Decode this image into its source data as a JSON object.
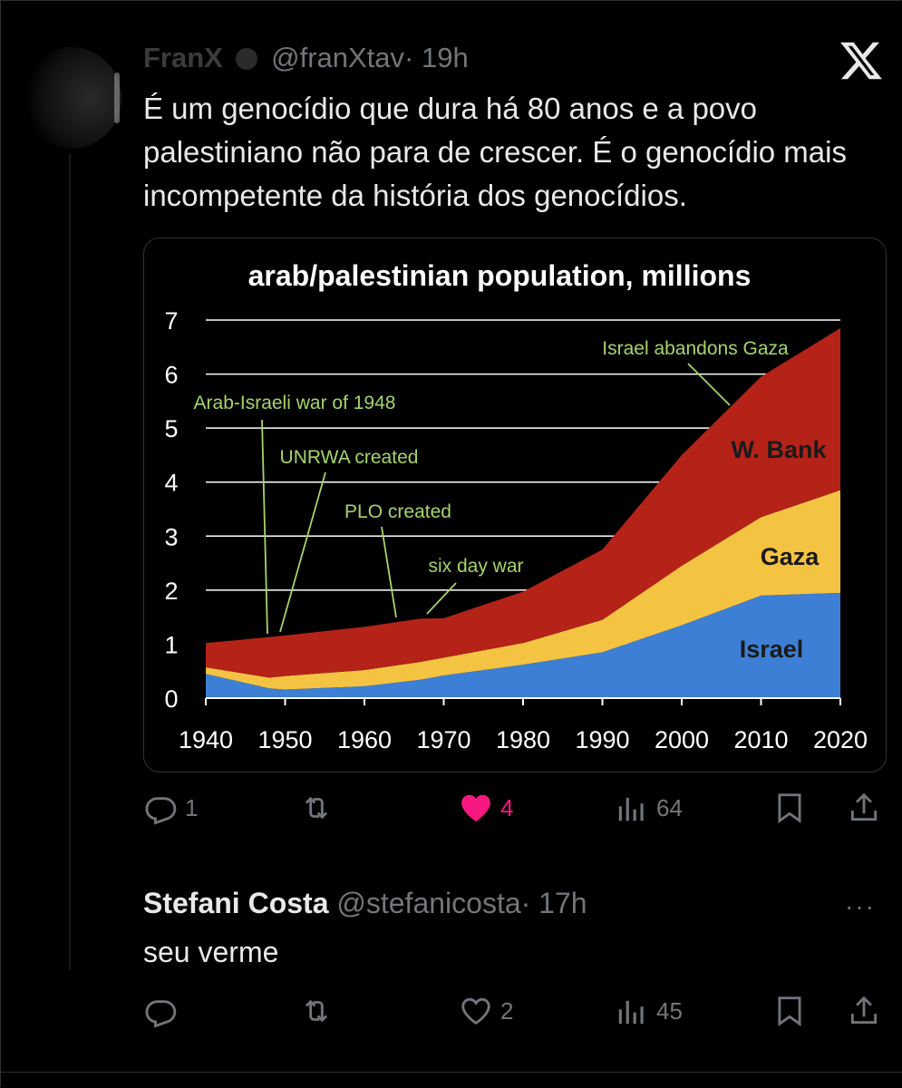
{
  "tweet": {
    "display_name": "FranX",
    "handle": "@franXtav",
    "time": "· 19h",
    "text": "É um genocídio que dura há 80 anos e a povo palestiniano não para de crescer. É o genocídio mais incompetente da história dos genocídios.",
    "actions": {
      "replies": "1",
      "reposts": "",
      "likes": "4",
      "views": "64"
    }
  },
  "reply": {
    "display_name": "Stefani Costa",
    "handle": "@stefanicosta",
    "time": "· 17h",
    "more": "···",
    "text": "seu verme",
    "actions": {
      "replies": "",
      "reposts": "",
      "likes": "2",
      "views": "45"
    }
  },
  "colors": {
    "like": "#f91880",
    "israel": "#3d7fd4",
    "gaza": "#f5c342",
    "wbank": "#b52318",
    "annotation": "#a5d46a"
  },
  "icons": [
    "x-logo-icon",
    "reply-icon",
    "repost-icon",
    "heart-icon",
    "views-icon",
    "bookmark-icon",
    "share-icon",
    "verified-icon",
    "more-icon"
  ],
  "chart_data": {
    "type": "area",
    "stacked": true,
    "title": "arab/palestinian population, millions",
    "x": [
      1940,
      1948,
      1950,
      1960,
      1967,
      1970,
      1980,
      1990,
      2000,
      2010,
      2020
    ],
    "series": [
      {
        "name": "Israel",
        "values": [
          0.45,
          0.18,
          0.16,
          0.22,
          0.34,
          0.42,
          0.62,
          0.85,
          1.35,
          1.9,
          1.95
        ]
      },
      {
        "name": "Gaza",
        "values": [
          0.12,
          0.2,
          0.25,
          0.3,
          0.33,
          0.33,
          0.4,
          0.6,
          1.1,
          1.45,
          1.9
        ]
      },
      {
        "name": "W. Bank",
        "values": [
          0.45,
          0.75,
          0.75,
          0.8,
          0.8,
          0.73,
          0.95,
          1.3,
          2.05,
          2.6,
          3.0
        ]
      }
    ],
    "series_labels": [
      "W. Bank",
      "Gaza",
      "Israel"
    ],
    "ylim": [
      0,
      7
    ],
    "yticks": [
      "0",
      "1",
      "2",
      "3",
      "4",
      "5",
      "6",
      "7"
    ],
    "xticks": [
      "1940",
      "1950",
      "1960",
      "1970",
      "1980",
      "1990",
      "2000",
      "2010",
      "2020"
    ],
    "grid": true,
    "annotations": [
      {
        "text": "Israel abandons Gaza",
        "x": 2005
      },
      {
        "text": "Arab-Israeli war of 1948",
        "x": 1948
      },
      {
        "text": "UNRWA created",
        "x": 1949.5
      },
      {
        "text": "PLO created",
        "x": 1964
      },
      {
        "text": "six day war",
        "x": 1967
      }
    ]
  }
}
